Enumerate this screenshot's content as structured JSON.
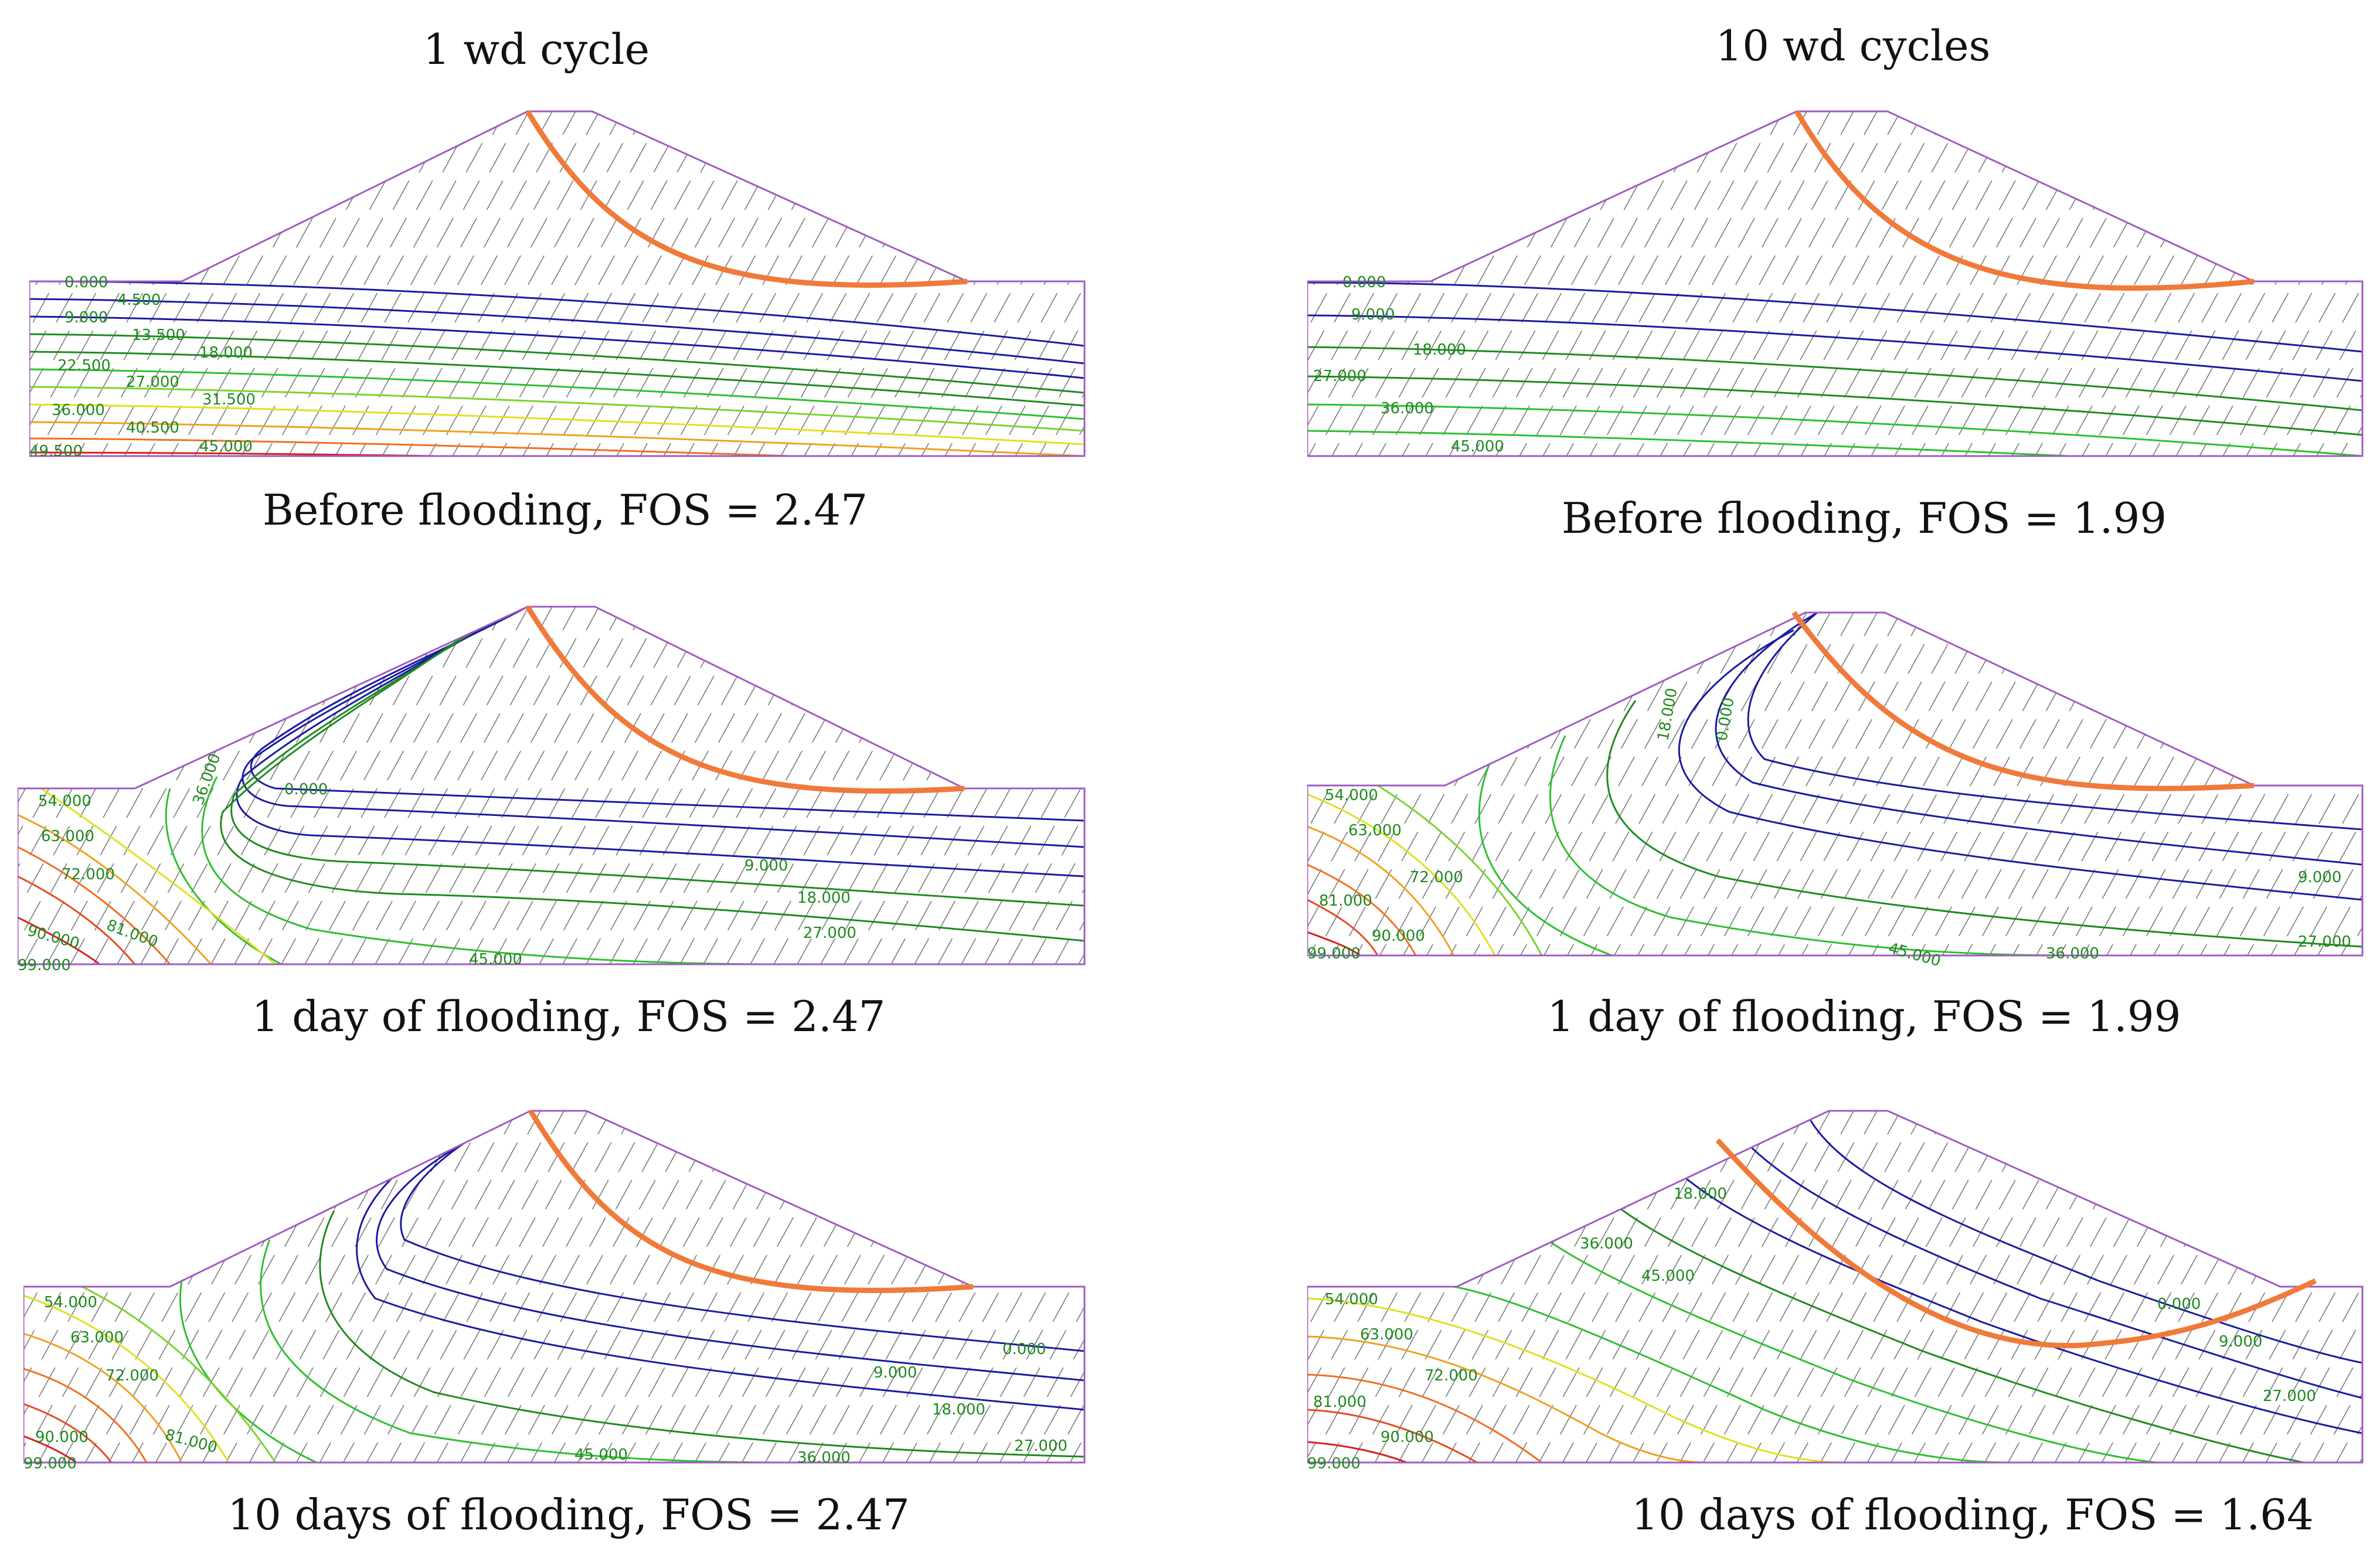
{
  "columns": [
    {
      "heading": "1 wd cycle"
    },
    {
      "heading": "10 wd cycles"
    }
  ],
  "panels": [
    {
      "caption": "Before flooding, FOS = 2.47",
      "labels": [
        {
          "text": "0.000",
          "color": "#1a1aa0"
        },
        {
          "text": "4.500",
          "color": "#1a1aa0"
        },
        {
          "text": "9.000",
          "color": "#1a1aa0"
        },
        {
          "text": "13.500",
          "color": "#1f8a1f"
        },
        {
          "text": "18.000",
          "color": "#1f8a1f"
        },
        {
          "text": "22.500",
          "color": "#1f8a1f"
        },
        {
          "text": "27.000",
          "color": "#1f8a1f"
        },
        {
          "text": "31.500",
          "color": "#1f8a1f"
        },
        {
          "text": "36.000",
          "color": "#1f8a1f"
        },
        {
          "text": "40.500",
          "color": "#1f8a1f"
        },
        {
          "text": "45.000",
          "color": "#1f8a1f"
        },
        {
          "text": "49.500",
          "color": "#1f8a1f"
        }
      ]
    },
    {
      "caption": "Before flooding, FOS = 1.99",
      "labels": [
        {
          "text": "0.000",
          "color": "#1a1aa0"
        },
        {
          "text": "9.000",
          "color": "#1a1aa0"
        },
        {
          "text": "18.000",
          "color": "#1f8a1f"
        },
        {
          "text": "27.000",
          "color": "#1f8a1f"
        },
        {
          "text": "36.000",
          "color": "#1f8a1f"
        },
        {
          "text": "45.000",
          "color": "#1f8a1f"
        }
      ]
    },
    {
      "caption": "1 day of flooding, FOS = 2.47",
      "labels": [
        {
          "text": "54.000",
          "color": "#1f8a1f"
        },
        {
          "text": "63.000",
          "color": "#1f8a1f"
        },
        {
          "text": "72.000",
          "color": "#1f8a1f"
        },
        {
          "text": "81.000",
          "color": "#1f8a1f"
        },
        {
          "text": "90.000",
          "color": "#1f8a1f"
        },
        {
          "text": "36.000",
          "color": "#1f8a1f"
        },
        {
          "text": "0.000",
          "color": "#1a1aa0"
        },
        {
          "text": "9.000",
          "color": "#1f8a1f"
        },
        {
          "text": "18.000",
          "color": "#1f8a1f"
        },
        {
          "text": "27.000",
          "color": "#1f8a1f"
        },
        {
          "text": "45.000",
          "color": "#1f8a1f"
        },
        {
          "text": "99.000",
          "color": "#1f8a1f"
        }
      ]
    },
    {
      "caption": "1 day of flooding, FOS = 1.99",
      "labels": [
        {
          "text": "54.000",
          "color": "#1f8a1f"
        },
        {
          "text": "63.000",
          "color": "#1f8a1f"
        },
        {
          "text": "72.000",
          "color": "#1f8a1f"
        },
        {
          "text": "81.000",
          "color": "#1f8a1f"
        },
        {
          "text": "90.000",
          "color": "#1f8a1f"
        },
        {
          "text": "18.000",
          "color": "#1f8a1f"
        },
        {
          "text": "0.000",
          "color": "#1f8a1f"
        },
        {
          "text": "45.000",
          "color": "#1f8a1f"
        },
        {
          "text": "36.000",
          "color": "#1f8a1f"
        },
        {
          "text": "9.000",
          "color": "#1f8a1f"
        },
        {
          "text": "27.000",
          "color": "#1f8a1f"
        },
        {
          "text": "99.000",
          "color": "#1f8a1f"
        }
      ]
    },
    {
      "caption": "10 days of flooding, FOS = 2.47",
      "labels": [
        {
          "text": "54.000",
          "color": "#1f8a1f"
        },
        {
          "text": "63.000",
          "color": "#1f8a1f"
        },
        {
          "text": "72.000",
          "color": "#1f8a1f"
        },
        {
          "text": "81.000",
          "color": "#1f8a1f"
        },
        {
          "text": "90.000",
          "color": "#1f8a1f"
        },
        {
          "text": "99.000",
          "color": "#1f8a1f"
        },
        {
          "text": "0.000",
          "color": "#1a1aa0"
        },
        {
          "text": "9.000",
          "color": "#1f8a1f"
        },
        {
          "text": "18.000",
          "color": "#1f8a1f"
        },
        {
          "text": "27.000",
          "color": "#1f8a1f"
        },
        {
          "text": "36.000",
          "color": "#1f8a1f"
        },
        {
          "text": "45.000",
          "color": "#1f8a1f"
        }
      ]
    },
    {
      "caption": "10 days of flooding, FOS = 1.64",
      "labels": [
        {
          "text": "54.000",
          "color": "#1f8a1f"
        },
        {
          "text": "63.000",
          "color": "#1f8a1f"
        },
        {
          "text": "72.000",
          "color": "#1f8a1f"
        },
        {
          "text": "81.000",
          "color": "#1f8a1f"
        },
        {
          "text": "90.000",
          "color": "#1f8a1f"
        },
        {
          "text": "99.000",
          "color": "#1f8a1f"
        },
        {
          "text": "18.000",
          "color": "#1f8a1f"
        },
        {
          "text": "36.000",
          "color": "#1f8a1f"
        },
        {
          "text": "45.000",
          "color": "#1f8a1f"
        },
        {
          "text": "0.000",
          "color": "#1f8a1f"
        },
        {
          "text": "9.000",
          "color": "#1f8a1f"
        },
        {
          "text": "27.000",
          "color": "#1f8a1f"
        }
      ]
    }
  ],
  "colors": {
    "outline": "#a05cc0",
    "hatch": "#7a7a7a",
    "slip_surface": "#f07a3a"
  }
}
